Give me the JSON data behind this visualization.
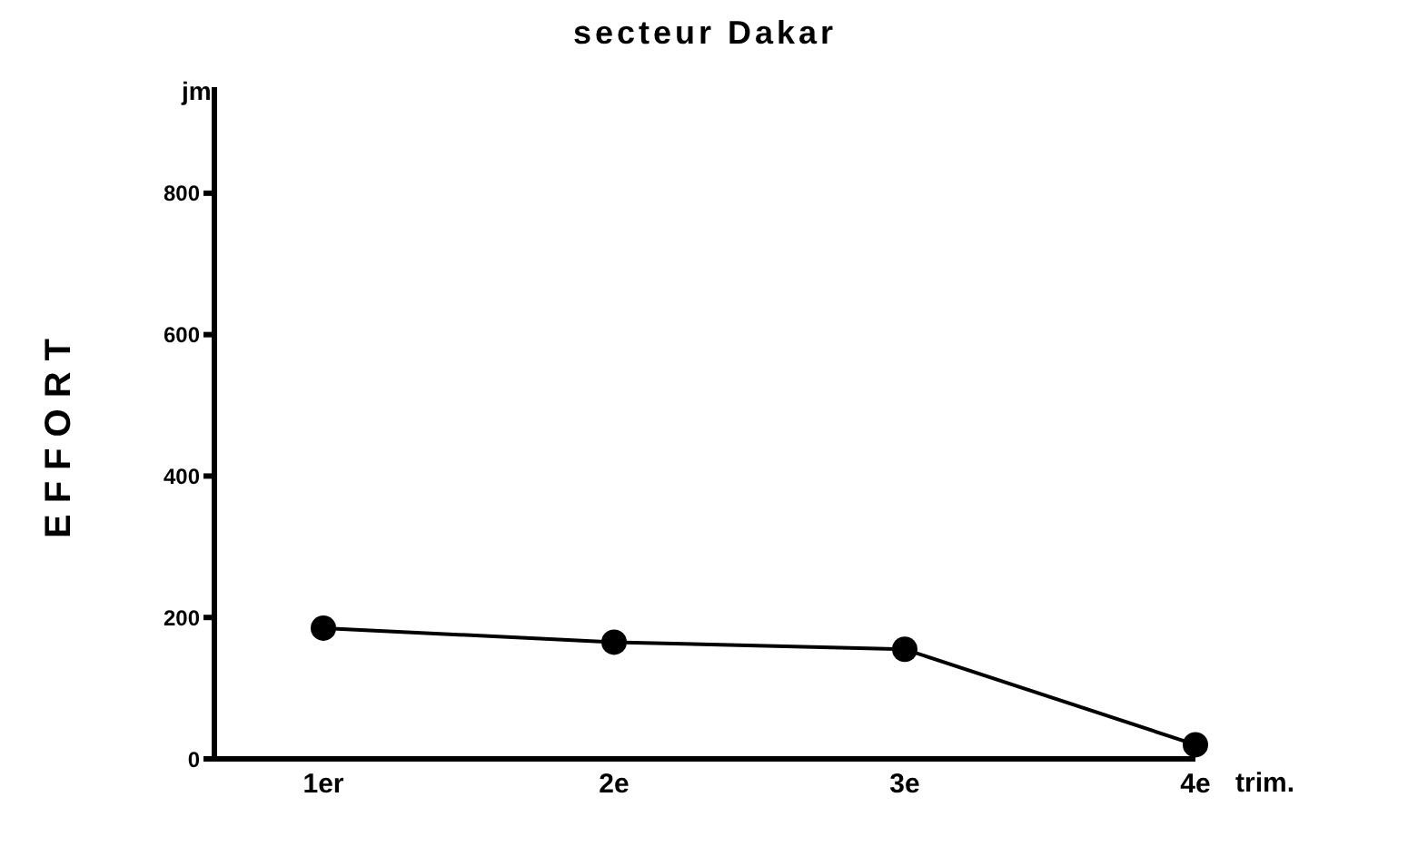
{
  "chart_data": {
    "type": "line",
    "title": "secteur Dakar",
    "ylabel": "EFFORT",
    "xlabel": "trim.",
    "annotations": [
      "jm"
    ],
    "categories": [
      "1er",
      "2e",
      "3e",
      "4e"
    ],
    "series": [
      {
        "color": "#000000",
        "values": [
          185,
          165,
          155,
          20
        ]
      }
    ],
    "ylim": [
      0,
      950
    ],
    "yticks": [
      0,
      200,
      400,
      600,
      800
    ],
    "grid": false,
    "marker": "circle",
    "line_style": "solid"
  }
}
